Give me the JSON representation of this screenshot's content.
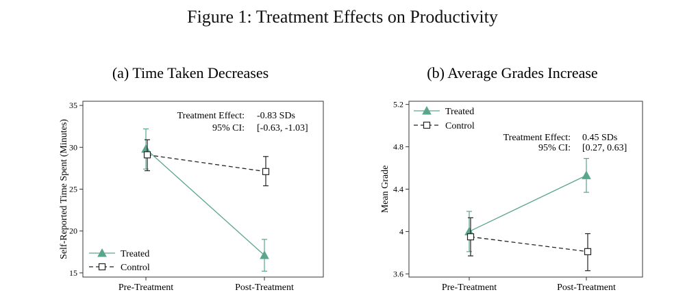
{
  "figure_title": "Figure 1: Treatment Effects on Productivity",
  "colors": {
    "treated": "#5aa68a",
    "control": "#222222",
    "axis": "#333333"
  },
  "chart_data": [
    {
      "type": "line",
      "title": "(a) Time Taken Decreases",
      "xlabel": "",
      "ylabel": "Self-Reported Time Spent (Minutes)",
      "categories": [
        "Pre-Treatment",
        "Post-Treatment"
      ],
      "ylim": [
        14.5,
        35.5
      ],
      "yticks": [
        15,
        20,
        25,
        30,
        35
      ],
      "ytick_labels": [
        "15",
        "20",
        "25",
        "30",
        "35"
      ],
      "series": [
        {
          "name": "Treated",
          "marker": "triangle",
          "values": [
            29.8,
            17.1
          ],
          "ci_low": [
            27.4,
            15.2
          ],
          "ci_high": [
            32.2,
            19.0
          ]
        },
        {
          "name": "Control",
          "marker": "square",
          "values": [
            29.1,
            27.1
          ],
          "ci_low": [
            27.2,
            25.4
          ],
          "ci_high": [
            30.9,
            28.9
          ]
        }
      ],
      "legend_position": "bottom-left",
      "annotation": {
        "line1_label": "Treatment Effect:",
        "line1_value": "-0.83 SDs",
        "line2_label": "95% CI:",
        "line2_value": "[-0.63, -1.03]"
      }
    },
    {
      "type": "line",
      "title": "(b) Average Grades Increase",
      "xlabel": "",
      "ylabel": "Mean Grade",
      "categories": [
        "Pre-Treatment",
        "Post-Treatment"
      ],
      "ylim": [
        3.57,
        5.23
      ],
      "yticks": [
        3.6,
        4.0,
        4.4,
        4.8,
        5.2
      ],
      "ytick_labels": [
        "3.6",
        "4",
        "4.4",
        "4.8",
        "5.2"
      ],
      "series": [
        {
          "name": "Treated",
          "marker": "triangle",
          "values": [
            4.0,
            4.53
          ],
          "ci_low": [
            3.81,
            4.37
          ],
          "ci_high": [
            4.19,
            4.69
          ]
        },
        {
          "name": "Control",
          "marker": "square",
          "values": [
            3.95,
            3.81
          ],
          "ci_low": [
            3.77,
            3.63
          ],
          "ci_high": [
            4.13,
            3.98
          ]
        }
      ],
      "legend_position": "top-left",
      "annotation": {
        "line1_label": "Treatment Effect:",
        "line1_value": "0.45 SDs",
        "line2_label": "95% CI:",
        "line2_value": "[0.27, 0.63]"
      }
    }
  ]
}
